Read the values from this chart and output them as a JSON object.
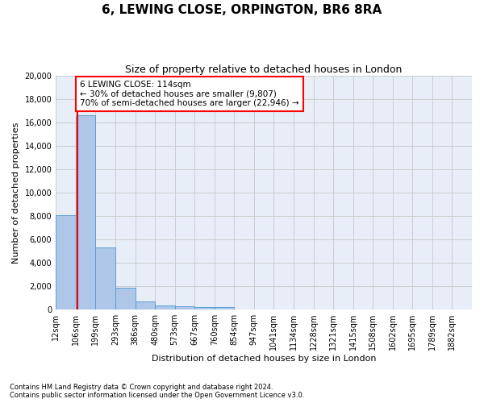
{
  "title": "6, LEWING CLOSE, ORPINGTON, BR6 8RA",
  "subtitle": "Size of property relative to detached houses in London",
  "xlabel": "Distribution of detached houses by size in London",
  "ylabel": "Number of detached properties",
  "bin_labels": [
    "12sqm",
    "106sqm",
    "199sqm",
    "293sqm",
    "386sqm",
    "480sqm",
    "573sqm",
    "667sqm",
    "760sqm",
    "854sqm",
    "947sqm",
    "1041sqm",
    "1134sqm",
    "1228sqm",
    "1321sqm",
    "1415sqm",
    "1508sqm",
    "1602sqm",
    "1695sqm",
    "1789sqm",
    "1882sqm"
  ],
  "bar_heights": [
    8100,
    16600,
    5300,
    1850,
    700,
    350,
    280,
    220,
    180,
    0,
    0,
    0,
    0,
    0,
    0,
    0,
    0,
    0,
    0,
    0,
    0
  ],
  "bar_color": "#aec6e8",
  "bar_edge_color": "#5a9fd4",
  "red_line_x": 1.08,
  "annotation_text": "6 LEWING CLOSE: 114sqm\n← 30% of detached houses are smaller (9,807)\n70% of semi-detached houses are larger (22,946) →",
  "annotation_box_color": "white",
  "annotation_box_edge_color": "red",
  "red_line_color": "red",
  "ylim": [
    0,
    20000
  ],
  "yticks": [
    0,
    2000,
    4000,
    6000,
    8000,
    10000,
    12000,
    14000,
    16000,
    18000,
    20000
  ],
  "grid_color": "#cccccc",
  "background_color": "#e8eef8",
  "footer_text": "Contains HM Land Registry data © Crown copyright and database right 2024.\nContains public sector information licensed under the Open Government Licence v3.0.",
  "title_fontsize": 11,
  "subtitle_fontsize": 9,
  "axis_label_fontsize": 8,
  "tick_fontsize": 7
}
